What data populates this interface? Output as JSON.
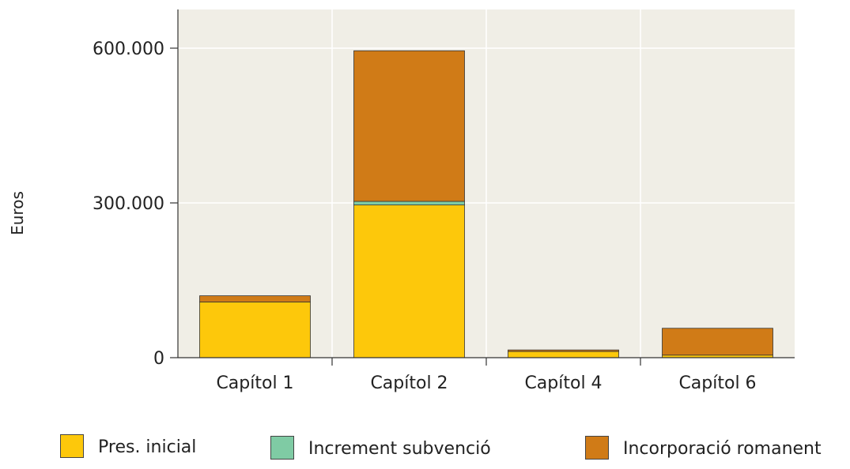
{
  "chart_data": {
    "type": "bar",
    "stacked": true,
    "categories": [
      "Capítol 1",
      "Capítol 2",
      "Capítol 4",
      "Capítol 6"
    ],
    "series": [
      {
        "name": "Pres. inicial",
        "color": "#FDC80B",
        "values": [
          108000,
          296000,
          12000,
          5000
        ]
      },
      {
        "name": "Increment subvenció",
        "color": "#7FCBA4",
        "values": [
          0,
          7000,
          0,
          0
        ]
      },
      {
        "name": "Incorporació romanent",
        "color": "#D07B17",
        "values": [
          12000,
          292000,
          3000,
          52000
        ]
      }
    ],
    "ylabel": "Euros",
    "xlabel": "",
    "ylim": [
      0,
      660000
    ],
    "yticks": [
      0,
      300000,
      600000
    ],
    "ytick_labels": [
      "0",
      "300.000",
      "600.000"
    ],
    "grid": true,
    "legend_position": "bottom"
  }
}
